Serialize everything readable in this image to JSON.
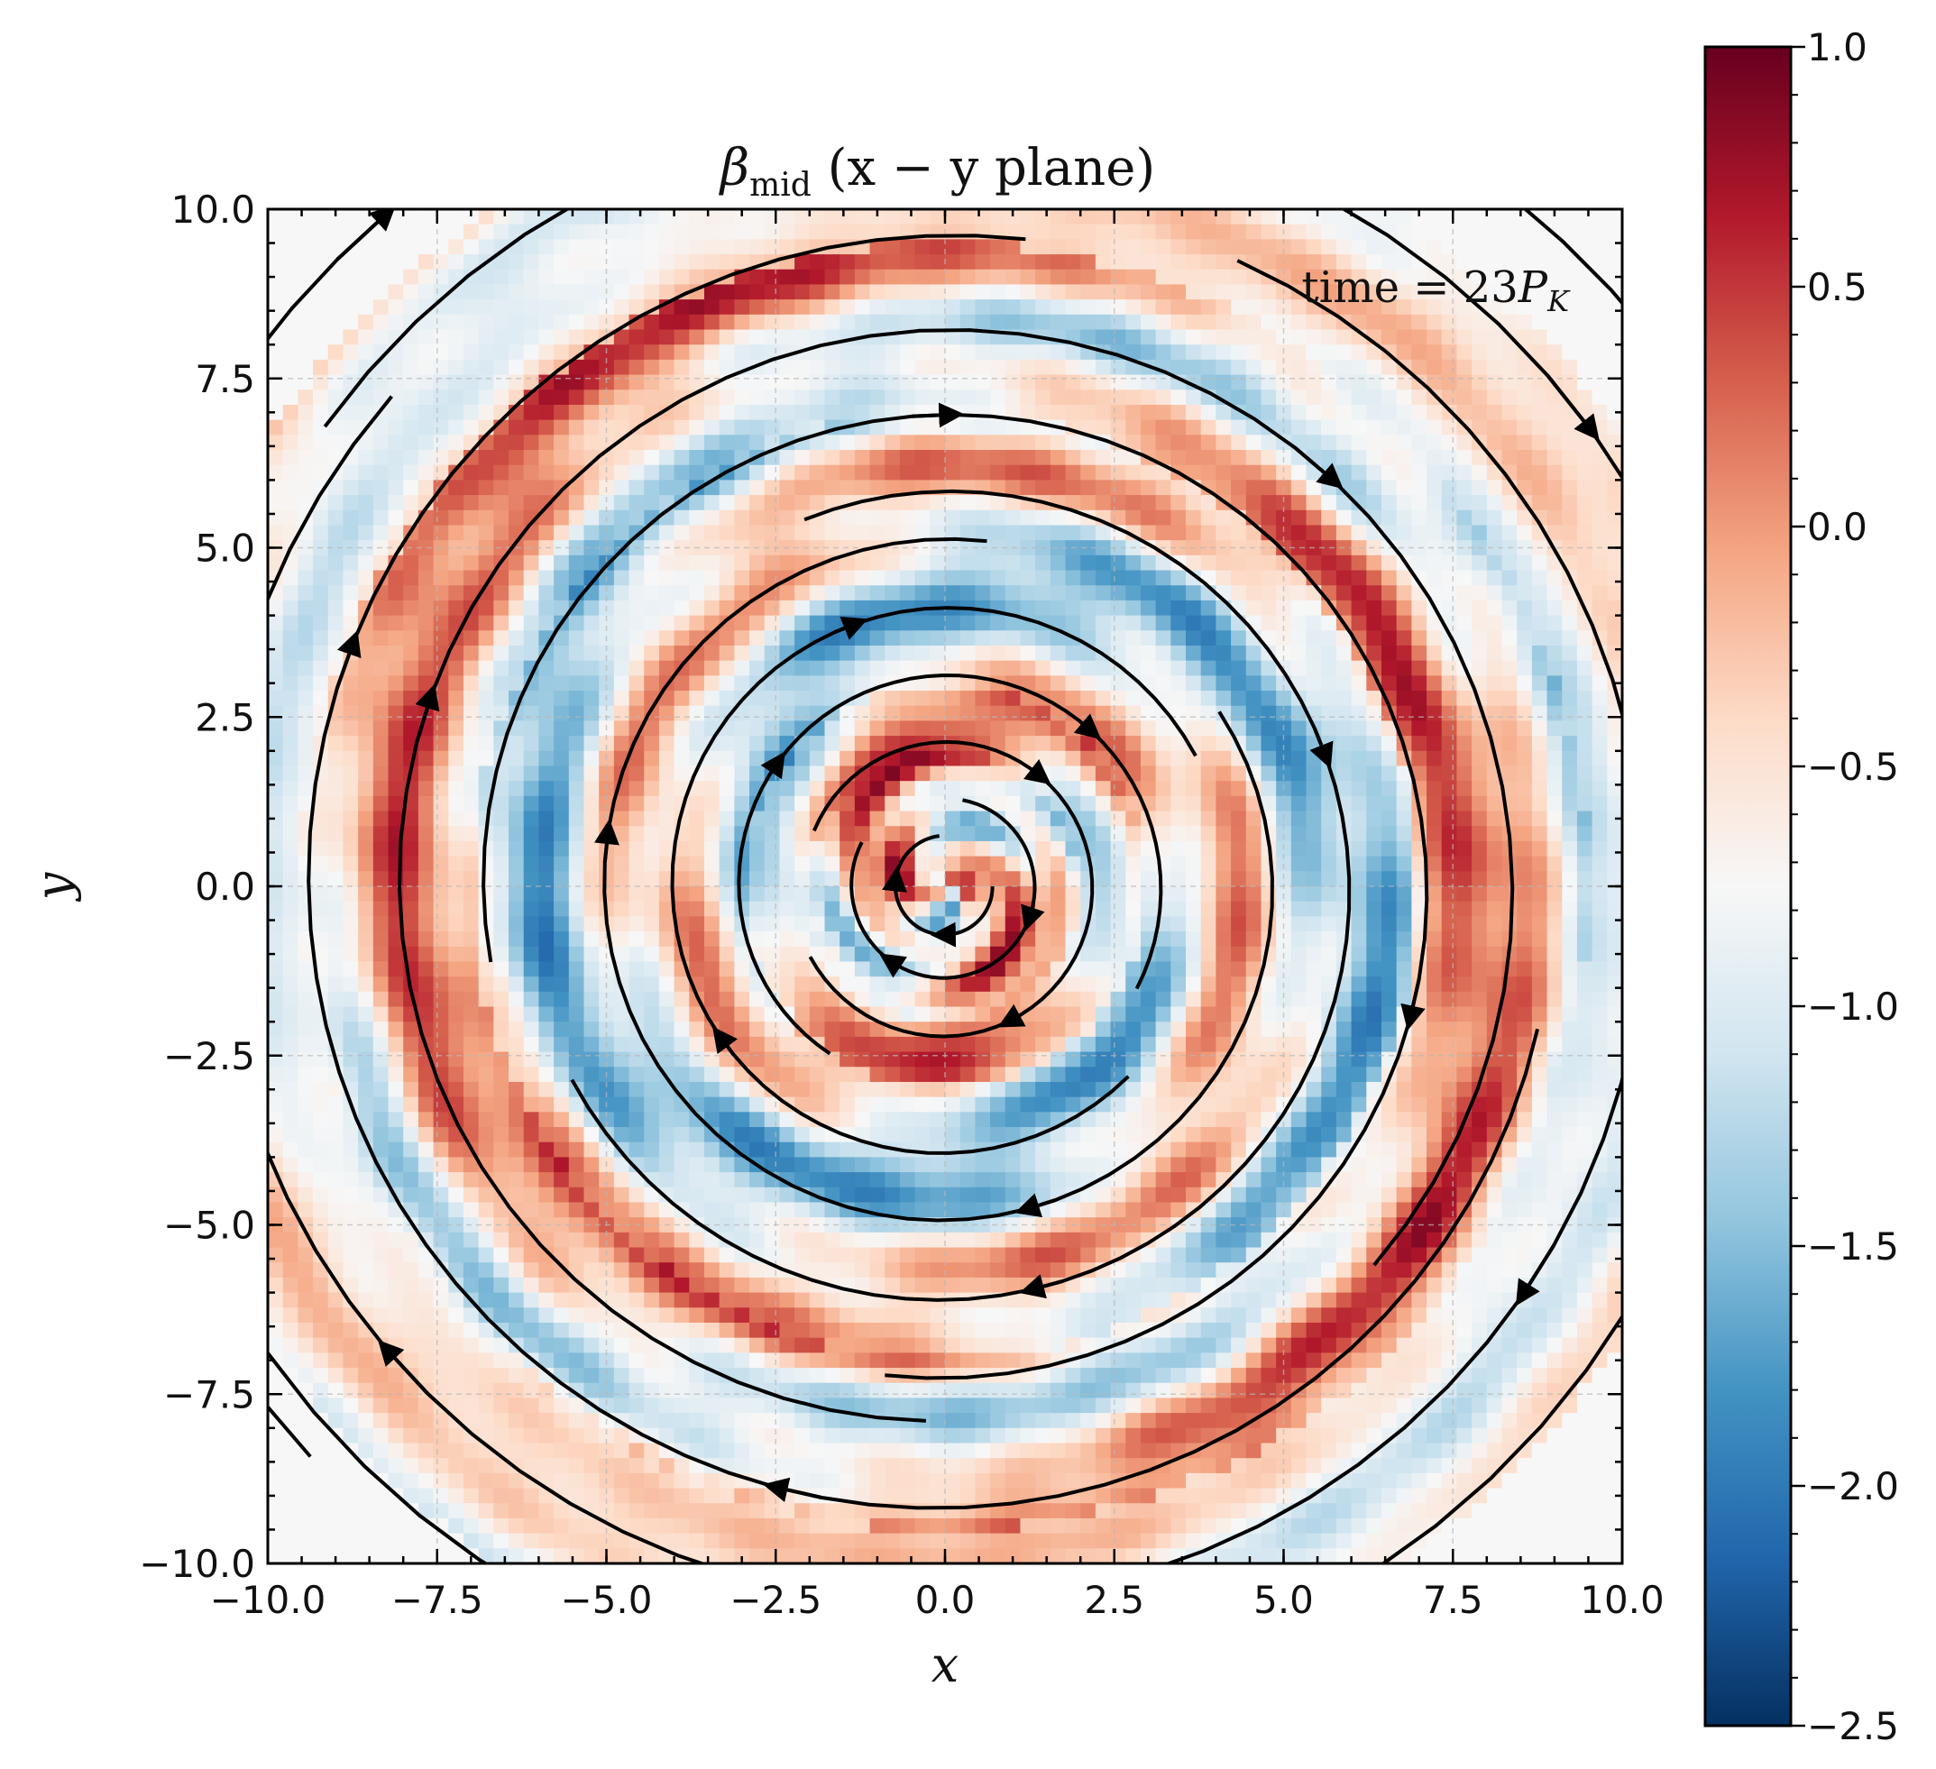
{
  "chart_data": {
    "type": "heatmap",
    "title": "βmid (x − y plane)",
    "title_parts": {
      "symbol": "β",
      "subscript": "mid",
      "rest": " (x − y plane)"
    },
    "annotation": {
      "prefix": "time = 23",
      "symbol": "P",
      "subscript": "K"
    },
    "xlabel": "x",
    "ylabel": "y",
    "xlim": [
      -10,
      10
    ],
    "ylim": [
      -10,
      10
    ],
    "xticks": [
      -10,
      -7.5,
      -5,
      -2.5,
      0,
      2.5,
      5,
      7.5,
      10
    ],
    "yticks": [
      -10,
      -7.5,
      -5,
      -2.5,
      0,
      2.5,
      5,
      7.5,
      10
    ],
    "xtick_labels": [
      "−10.0",
      "−7.5",
      "−5.0",
      "−2.5",
      "0.0",
      "2.5",
      "5.0",
      "7.5",
      "10.0"
    ],
    "ytick_labels": [
      "−10.0",
      "−7.5",
      "−5.0",
      "−2.5",
      "0.0",
      "2.5",
      "5.0",
      "7.5",
      "10.0"
    ],
    "grid": true,
    "colormap": "RdBu_r",
    "colorbar": {
      "range": [
        -2.5,
        1.0
      ],
      "ticks": [
        1.0,
        0.5,
        0.0,
        -0.5,
        -1.0,
        -1.5,
        -2.0,
        -2.5
      ],
      "tick_labels": [
        "1.0",
        "0.5",
        "0.0",
        "−0.5",
        "−1.0",
        "−1.5",
        "−2.0",
        "−2.5"
      ]
    },
    "overlay": "streamlines, clockwise spiral around origin",
    "colors": {
      "cmap_stops": [
        "#053061",
        "#2166ac",
        "#4393c3",
        "#92c5de",
        "#d1e5f0",
        "#f7f7f7",
        "#fddbc7",
        "#f4a582",
        "#d6604d",
        "#b2182b",
        "#67001f"
      ],
      "streamline": "#000000",
      "grid": "#b8b8b8",
      "background": "#ffffff"
    }
  }
}
